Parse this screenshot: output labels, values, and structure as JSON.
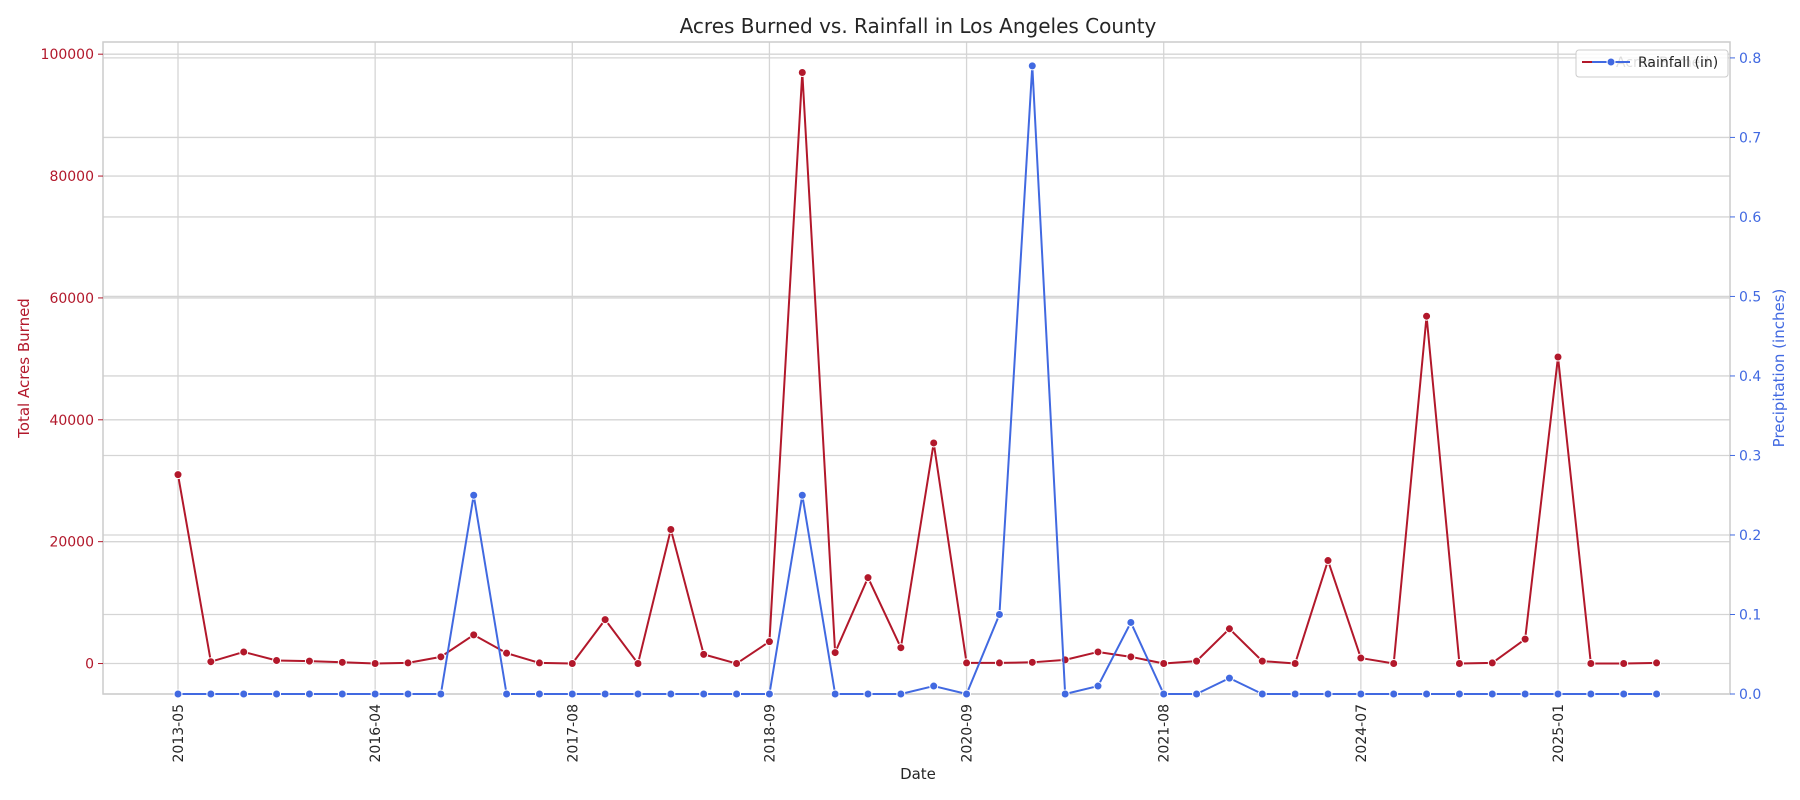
{
  "chart_data": {
    "type": "line",
    "title": "Acres Burned vs. Rainfall in Los Angeles County",
    "xlabel": "Date",
    "ylabel_left": "Total Acres Burned",
    "ylabel_right": "Precipitation (inches)",
    "ylim_left": [
      -5000,
      102000
    ],
    "ylim_right": [
      0,
      0.82
    ],
    "yticks_left": [
      0,
      20000,
      40000,
      60000,
      80000,
      100000
    ],
    "yticks_left_labels": [
      "0",
      "20000",
      "40000",
      "60000",
      "80000",
      "100000"
    ],
    "yticks_right": [
      0.0,
      0.1,
      0.2,
      0.3,
      0.4,
      0.5,
      0.6,
      0.7,
      0.8
    ],
    "yticks_right_labels": [
      "0.0",
      "0.1",
      "0.2",
      "0.3",
      "0.4",
      "0.5",
      "0.6",
      "0.7",
      "0.8"
    ],
    "xtick_indices": [
      0,
      6,
      12,
      18,
      24,
      30,
      36,
      42
    ],
    "xtick_labels": [
      "2013-05",
      "2016-04",
      "2017-08",
      "2018-09",
      "2020-09",
      "2021-08",
      "2024-07",
      "2025-01"
    ],
    "x_count": 46,
    "grid": true,
    "legend_position": "top-right",
    "series": [
      {
        "name": "Acres Burned",
        "axis": "left",
        "color": "#b2182b",
        "values": [
          31000,
          300,
          1900,
          500,
          400,
          200,
          0,
          100,
          1100,
          4700,
          1700,
          100,
          0,
          7200,
          0,
          22000,
          1500,
          0,
          3600,
          97000,
          1800,
          14100,
          2600,
          36200,
          100,
          100,
          200,
          600,
          1900,
          1100,
          0,
          400,
          5700,
          400,
          0,
          16900,
          900,
          0,
          57000,
          0,
          100,
          4000,
          50300,
          0,
          0,
          100
        ]
      },
      {
        "name": "Rainfall (in)",
        "axis": "right",
        "color": "#4169e1",
        "values": [
          0,
          0,
          0,
          0,
          0,
          0,
          0,
          0,
          0,
          0.25,
          0,
          0,
          0,
          0,
          0,
          0,
          0,
          0,
          0,
          0.25,
          0,
          0,
          0,
          0.01,
          0,
          0.1,
          0.79,
          0,
          0.01,
          0.09,
          0,
          0,
          0.02,
          0,
          0,
          0,
          0,
          0,
          0,
          0,
          0,
          0,
          0,
          0,
          0,
          0
        ]
      }
    ]
  }
}
